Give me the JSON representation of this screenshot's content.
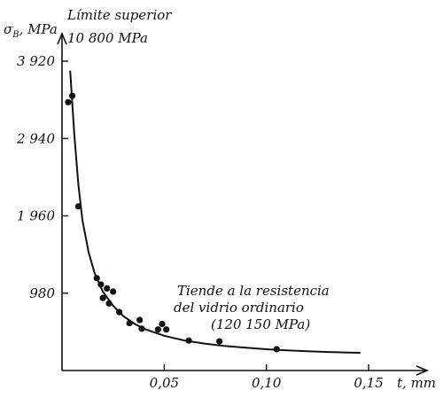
{
  "chart_data": {
    "type": "scatter",
    "ylabel": "σ",
    "ylabel_sub": "B",
    "ylabel_unit": ", MPa",
    "xlabel": "t, mm",
    "annotation_top": [
      "Límite superior",
      "10 800 MPa"
    ],
    "annotation_mid": [
      "Tiende a la resistencia",
      "del vidrio ordinario",
      "(120 150 MPa)"
    ],
    "xlim": [
      0,
      0.16
    ],
    "ylim": [
      0,
      4200
    ],
    "x_ticks": [
      0.05,
      0.1,
      0.15
    ],
    "x_tick_labels": [
      "0,05",
      "0,10",
      "0,15"
    ],
    "y_ticks": [
      980,
      1960,
      2940,
      3920
    ],
    "y_tick_labels": [
      "980",
      "1 960",
      "2 940",
      "3 920"
    ],
    "points": [
      {
        "x": 0.003,
        "y": 3400
      },
      {
        "x": 0.005,
        "y": 3480
      },
      {
        "x": 0.008,
        "y": 2080
      },
      {
        "x": 0.017,
        "y": 1170
      },
      {
        "x": 0.019,
        "y": 1090
      },
      {
        "x": 0.02,
        "y": 920
      },
      {
        "x": 0.022,
        "y": 1040
      },
      {
        "x": 0.023,
        "y": 850
      },
      {
        "x": 0.025,
        "y": 1000
      },
      {
        "x": 0.028,
        "y": 740
      },
      {
        "x": 0.033,
        "y": 600
      },
      {
        "x": 0.038,
        "y": 640
      },
      {
        "x": 0.039,
        "y": 530
      },
      {
        "x": 0.047,
        "y": 520
      },
      {
        "x": 0.049,
        "y": 590
      },
      {
        "x": 0.051,
        "y": 520
      },
      {
        "x": 0.062,
        "y": 380
      },
      {
        "x": 0.077,
        "y": 370
      },
      {
        "x": 0.105,
        "y": 270
      }
    ],
    "curve": [
      [
        0.004,
        3800
      ],
      [
        0.006,
        3000
      ],
      [
        0.008,
        2350
      ],
      [
        0.01,
        1900
      ],
      [
        0.013,
        1500
      ],
      [
        0.016,
        1230
      ],
      [
        0.02,
        1000
      ],
      [
        0.025,
        820
      ],
      [
        0.03,
        690
      ],
      [
        0.035,
        600
      ],
      [
        0.04,
        530
      ],
      [
        0.05,
        440
      ],
      [
        0.06,
        380
      ],
      [
        0.07,
        340
      ],
      [
        0.08,
        310
      ],
      [
        0.09,
        290
      ],
      [
        0.1,
        270
      ],
      [
        0.11,
        255
      ],
      [
        0.12,
        245
      ],
      [
        0.13,
        235
      ],
      [
        0.14,
        228
      ],
      [
        0.146,
        225
      ]
    ]
  }
}
